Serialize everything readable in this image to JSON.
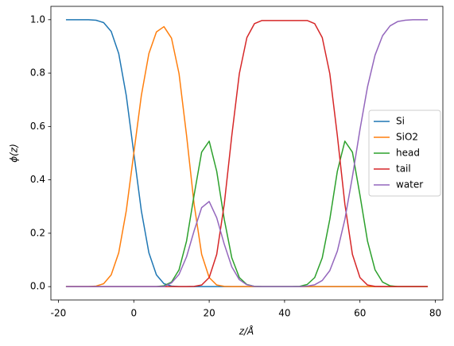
{
  "chart_data": {
    "type": "line",
    "x_label": "z/Å",
    "y_label": "ϕ(z)",
    "x": [
      -18,
      -16,
      -14,
      -12,
      -10,
      -8,
      -6,
      -4,
      -2,
      0,
      2,
      4,
      6,
      8,
      10,
      12,
      14,
      16,
      18,
      20,
      22,
      24,
      26,
      28,
      30,
      32,
      34,
      36,
      38,
      40,
      42,
      44,
      46,
      48,
      50,
      52,
      54,
      56,
      58,
      60,
      62,
      64,
      66,
      68,
      70,
      72,
      74,
      76,
      78
    ],
    "series": [
      {
        "name": "Si",
        "color": "#1f77b4",
        "values": [
          1,
          1,
          1,
          1,
          0.998,
          0.989,
          0.956,
          0.873,
          0.716,
          0.5,
          0.284,
          0.127,
          0.044,
          0.011,
          0.002,
          0,
          0,
          0,
          0,
          0,
          0,
          0,
          0,
          0,
          0,
          0,
          0,
          0,
          0,
          0,
          0,
          0,
          0,
          0,
          0,
          0,
          0,
          0,
          0,
          0,
          0,
          0,
          0,
          0,
          0,
          0,
          0,
          0,
          0
        ]
      },
      {
        "name": "SiO2",
        "color": "#ff7f0e",
        "values": [
          0,
          0,
          0,
          0,
          0.002,
          0.011,
          0.044,
          0.127,
          0.284,
          0.5,
          0.716,
          0.873,
          0.954,
          0.974,
          0.931,
          0.798,
          0.566,
          0.309,
          0.121,
          0.034,
          0.006,
          0.001,
          0,
          0,
          0,
          0,
          0,
          0,
          0,
          0,
          0,
          0,
          0,
          0,
          0,
          0,
          0,
          0,
          0,
          0,
          0,
          0,
          0,
          0,
          0,
          0,
          0,
          0,
          0
        ]
      },
      {
        "name": "head",
        "color": "#2ca02c",
        "values": [
          0,
          0,
          0,
          0,
          0,
          0,
          0,
          0,
          0,
          0,
          0,
          0,
          0,
          0.003,
          0.017,
          0.063,
          0.171,
          0.343,
          0.504,
          0.545,
          0.432,
          0.252,
          0.108,
          0.034,
          0.008,
          0.001,
          0,
          0,
          0,
          0,
          0,
          0.001,
          0.008,
          0.034,
          0.108,
          0.252,
          0.432,
          0.545,
          0.504,
          0.343,
          0.171,
          0.063,
          0.017,
          0.003,
          0,
          0,
          0,
          0,
          0
        ]
      },
      {
        "name": "tail",
        "color": "#d62728",
        "values": [
          0,
          0,
          0,
          0,
          0,
          0,
          0,
          0,
          0,
          0,
          0,
          0,
          0,
          0,
          0,
          0,
          0,
          0.001,
          0.006,
          0.034,
          0.121,
          0.309,
          0.566,
          0.798,
          0.933,
          0.985,
          0.997,
          0.997,
          0.997,
          0.997,
          0.997,
          0.997,
          0.997,
          0.985,
          0.933,
          0.798,
          0.566,
          0.309,
          0.121,
          0.034,
          0.006,
          0.001,
          0,
          0,
          0,
          0,
          0,
          0,
          0
        ]
      },
      {
        "name": "water",
        "color": "#9467bd",
        "values": [
          0,
          0,
          0,
          0,
          0,
          0,
          0,
          0,
          0,
          0,
          0,
          0,
          0,
          0,
          0.014,
          0.046,
          0.112,
          0.209,
          0.296,
          0.319,
          0.258,
          0.159,
          0.074,
          0.026,
          0.007,
          0.001,
          0,
          0,
          0,
          0,
          0,
          0,
          0.002,
          0.007,
          0.023,
          0.06,
          0.133,
          0.252,
          0.412,
          0.588,
          0.748,
          0.867,
          0.94,
          0.977,
          0.993,
          0.998,
          1,
          1,
          1
        ]
      }
    ],
    "xlim": [
      -22,
      82
    ],
    "xticks": [
      -20,
      0,
      20,
      40,
      60,
      80
    ],
    "ylim": [
      -0.05,
      1.05
    ],
    "yticks": [
      {
        "value": 0,
        "label": "0.0"
      },
      {
        "value": 0.2,
        "label": "0.2"
      },
      {
        "value": 0.4,
        "label": "0.4"
      },
      {
        "value": 0.6,
        "label": "0.6"
      },
      {
        "value": 0.8,
        "label": "0.8"
      },
      {
        "value": 1,
        "label": "1.0"
      }
    ],
    "grid": false,
    "legend": "center right"
  }
}
